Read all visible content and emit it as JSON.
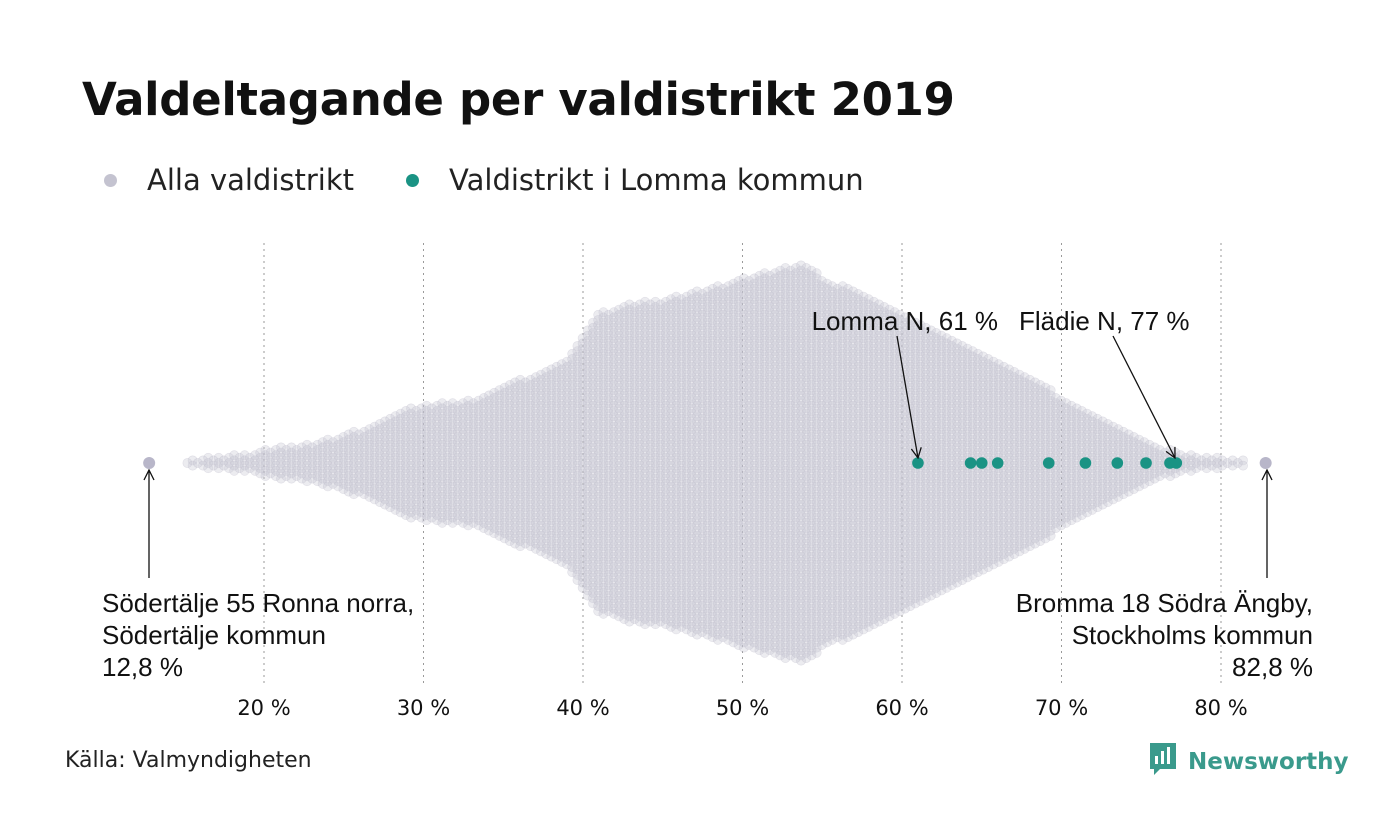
{
  "title": "Valdeltagande per valdistrikt 2019",
  "legend": [
    {
      "label": "Alla valdistrikt",
      "color": "#c4c3d0"
    },
    {
      "label": "Valdistrikt i Lomma kommun",
      "color": "#1a9384"
    }
  ],
  "source": "Källa: Valmyndigheten",
  "brand": {
    "name": "Newsworthy",
    "icon": "newsworthy-logo-icon",
    "color": "#3a9a8c"
  },
  "chart_data": {
    "type": "scatter",
    "title": "Valdeltagande per valdistrikt 2019",
    "xlabel": "",
    "ylabel": "",
    "xlim": [
      12,
      84
    ],
    "xticks": [
      20,
      30,
      40,
      50,
      60,
      70,
      80
    ],
    "xtick_labels": [
      "20 %",
      "30 %",
      "40 %",
      "50 %",
      "60 %",
      "70 %",
      "80 %"
    ],
    "grid": true,
    "series": [
      {
        "name": "Alla valdistrikt",
        "color": "#c4c3d0",
        "distribution_profile": {
          "x": [
            12.8,
            15,
            17,
            19,
            21,
            23,
            25,
            27,
            29,
            31,
            33,
            35,
            37,
            39,
            41,
            43,
            45,
            47,
            49,
            51,
            53,
            54,
            55,
            57,
            59,
            61,
            63,
            65,
            67,
            69,
            71,
            73,
            75,
            77,
            79,
            81,
            82.8
          ],
          "relative_density": [
            0.02,
            0.02,
            0.03,
            0.05,
            0.08,
            0.1,
            0.14,
            0.2,
            0.28,
            0.3,
            0.32,
            0.38,
            0.45,
            0.52,
            0.75,
            0.8,
            0.82,
            0.86,
            0.9,
            0.95,
            0.98,
            1.0,
            0.93,
            0.86,
            0.78,
            0.7,
            0.62,
            0.54,
            0.46,
            0.38,
            0.28,
            0.2,
            0.12,
            0.06,
            0.03,
            0.02,
            0.02
          ]
        }
      },
      {
        "name": "Valdistrikt i Lomma kommun",
        "color": "#1a9384",
        "x": [
          61.0,
          64.3,
          65.0,
          66.0,
          69.2,
          71.5,
          73.5,
          75.3,
          76.8,
          77.2
        ]
      }
    ],
    "annotations": [
      {
        "lines": [
          "Lomma N, 61 %"
        ],
        "x": 61.0,
        "align": "end"
      },
      {
        "lines": [
          "Flädie N, 77 %"
        ],
        "x": 77.0,
        "align": "start"
      },
      {
        "lines": [
          "Södertälje 55 Ronna norra,",
          "Södertälje kommun",
          "12,8 %"
        ],
        "x": 12.8,
        "align": "start"
      },
      {
        "lines": [
          "Bromma 18 Södra Ängby,",
          "Stockholms kommun",
          "82,8 %"
        ],
        "x": 82.8,
        "align": "end"
      }
    ]
  }
}
